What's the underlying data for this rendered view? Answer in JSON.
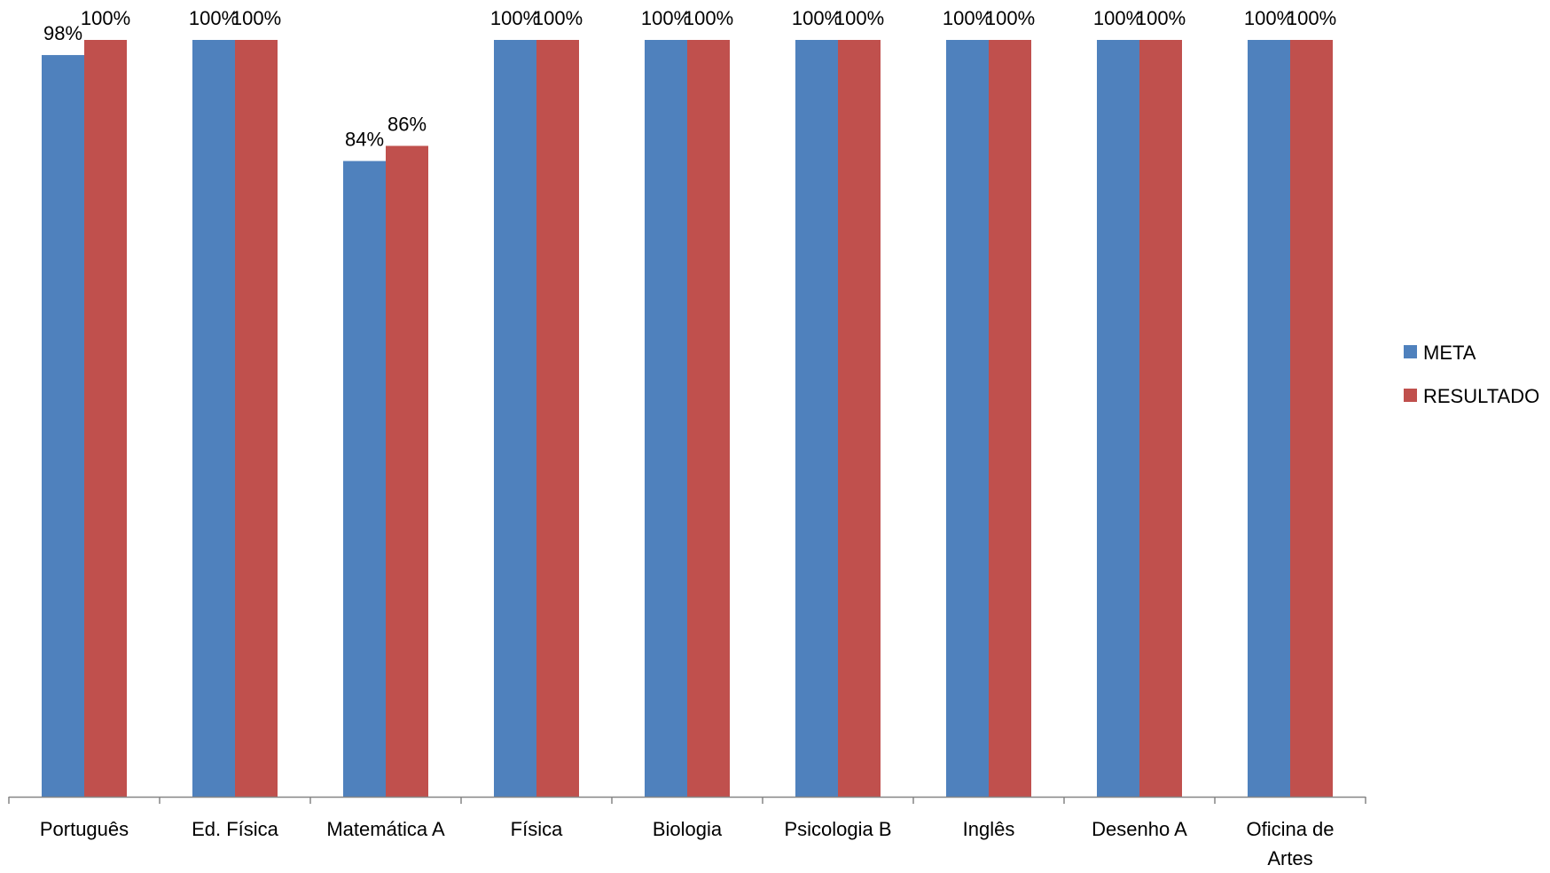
{
  "chart_data": {
    "type": "bar",
    "title": "",
    "xlabel": "",
    "ylabel": "",
    "ylim": [
      0,
      100
    ],
    "grid": false,
    "legend_position": "right",
    "value_suffix": "%",
    "categories": [
      "Português",
      "Ed. Física",
      "Matemática A",
      "Física",
      "Biologia",
      "Psicologia B",
      "Inglês",
      "Desenho A",
      "Oficina de Artes"
    ],
    "series": [
      {
        "name": "META",
        "color": "#4F81BD",
        "values": [
          98,
          100,
          84,
          100,
          100,
          100,
          100,
          100,
          100
        ],
        "labels": [
          "98%",
          "100%",
          "84%",
          "100%",
          "100%",
          "100%",
          "100%",
          "100%",
          "100%"
        ]
      },
      {
        "name": "RESULTADO",
        "color": "#C0504D",
        "values": [
          100,
          100,
          86,
          100,
          100,
          100,
          100,
          100,
          100
        ],
        "labels": [
          "100%",
          "100%",
          "86%",
          "100%",
          "100%",
          "100%",
          "100%",
          "100%",
          "100%"
        ]
      }
    ],
    "category_label_lines": [
      [
        "Português"
      ],
      [
        "Ed. Física"
      ],
      [
        "Matemática A"
      ],
      [
        "Física"
      ],
      [
        "Biologia"
      ],
      [
        "Psicologia B"
      ],
      [
        "Inglês"
      ],
      [
        "Desenho A"
      ],
      [
        "Oficina de",
        "Artes"
      ]
    ]
  }
}
